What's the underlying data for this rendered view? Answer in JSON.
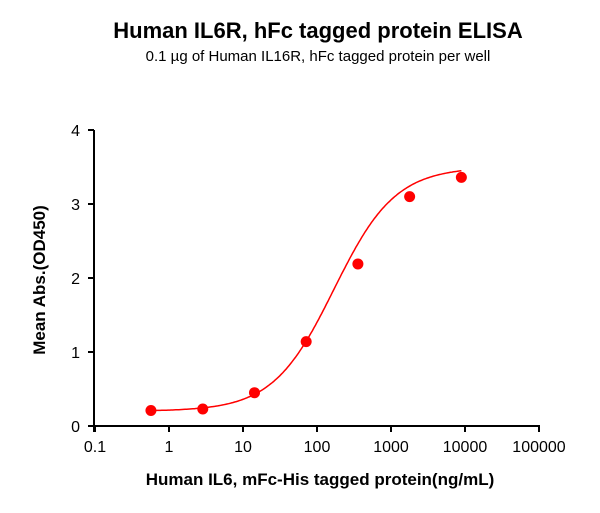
{
  "chart_data": {
    "type": "scatter",
    "title": "Human IL6R, hFc tagged protein ELISA",
    "subtitle": "0.1 µg of Human IL16R, hFc tagged protein per well",
    "xlabel": "Human IL6, mFc-His tagged protein(ng/mL)",
    "ylabel": "Mean Abs.(OD450)",
    "xscale": "log",
    "xlim": [
      0.1,
      100000
    ],
    "ylim": [
      0,
      4
    ],
    "x_ticks": [
      "0.1",
      "1",
      "10",
      "100",
      "1000",
      "10000",
      "100000"
    ],
    "y_ticks": [
      "0",
      "1",
      "2",
      "3",
      "4"
    ],
    "grid": false,
    "legend": null,
    "series": [
      {
        "name": "Human IL6, mFc-His tagged protein",
        "color": "#ff0000",
        "marker": "circle",
        "fit": "4-parameter logistic curve",
        "x": [
          0.57,
          2.86,
          14.3,
          71.4,
          357,
          1786,
          8929
        ],
        "y": [
          0.21,
          0.23,
          0.45,
          1.14,
          2.19,
          3.1,
          3.36
        ]
      }
    ]
  }
}
